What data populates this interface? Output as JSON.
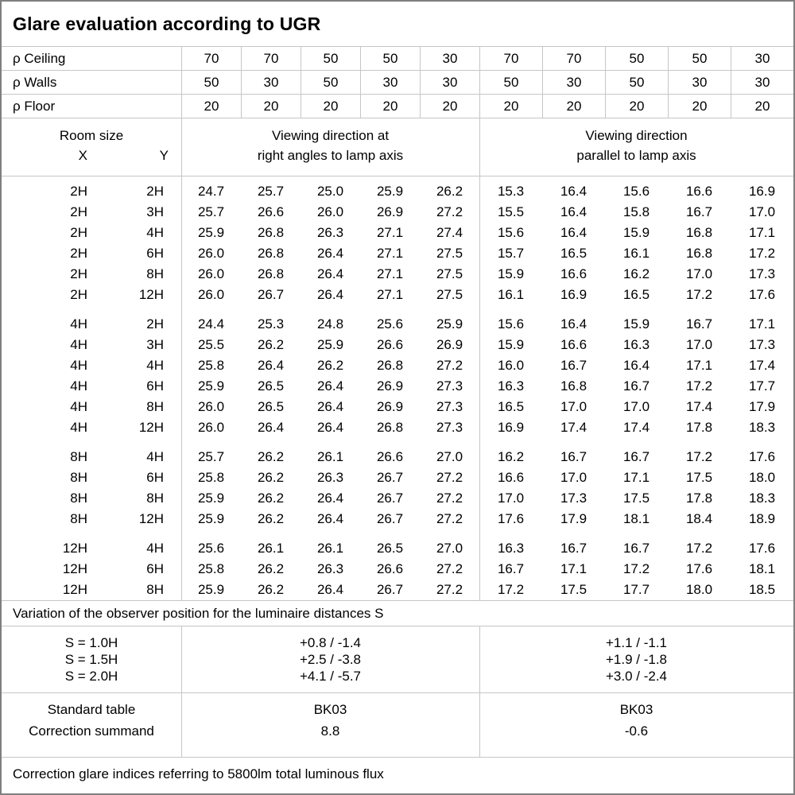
{
  "title": "Glare evaluation according to UGR",
  "reflectance_rows": [
    {
      "label": "ρ Ceiling",
      "values": [
        "70",
        "70",
        "50",
        "50",
        "30",
        "70",
        "70",
        "50",
        "50",
        "30"
      ]
    },
    {
      "label": "ρ Walls",
      "values": [
        "50",
        "30",
        "50",
        "30",
        "30",
        "50",
        "30",
        "50",
        "30",
        "30"
      ]
    },
    {
      "label": "ρ Floor",
      "values": [
        "20",
        "20",
        "20",
        "20",
        "20",
        "20",
        "20",
        "20",
        "20",
        "20"
      ]
    }
  ],
  "room_header": {
    "title": "Room size",
    "x_label": "X",
    "y_label": "Y",
    "left_heading_line1": "Viewing direction at",
    "left_heading_line2": "right angles to lamp axis",
    "right_heading_line1": "Viewing direction",
    "right_heading_line2": "parallel to lamp axis"
  },
  "ugr_blocks": [
    {
      "rows": [
        {
          "x": "2H",
          "y": "2H",
          "right_angles": [
            "24.7",
            "25.7",
            "25.0",
            "25.9",
            "26.2"
          ],
          "parallel": [
            "15.3",
            "16.4",
            "15.6",
            "16.6",
            "16.9"
          ]
        },
        {
          "x": "2H",
          "y": "3H",
          "right_angles": [
            "25.7",
            "26.6",
            "26.0",
            "26.9",
            "27.2"
          ],
          "parallel": [
            "15.5",
            "16.4",
            "15.8",
            "16.7",
            "17.0"
          ]
        },
        {
          "x": "2H",
          "y": "4H",
          "right_angles": [
            "25.9",
            "26.8",
            "26.3",
            "27.1",
            "27.4"
          ],
          "parallel": [
            "15.6",
            "16.4",
            "15.9",
            "16.8",
            "17.1"
          ]
        },
        {
          "x": "2H",
          "y": "6H",
          "right_angles": [
            "26.0",
            "26.8",
            "26.4",
            "27.1",
            "27.5"
          ],
          "parallel": [
            "15.7",
            "16.5",
            "16.1",
            "16.8",
            "17.2"
          ]
        },
        {
          "x": "2H",
          "y": "8H",
          "right_angles": [
            "26.0",
            "26.8",
            "26.4",
            "27.1",
            "27.5"
          ],
          "parallel": [
            "15.9",
            "16.6",
            "16.2",
            "17.0",
            "17.3"
          ]
        },
        {
          "x": "2H",
          "y": "12H",
          "right_angles": [
            "26.0",
            "26.7",
            "26.4",
            "27.1",
            "27.5"
          ],
          "parallel": [
            "16.1",
            "16.9",
            "16.5",
            "17.2",
            "17.6"
          ]
        }
      ]
    },
    {
      "rows": [
        {
          "x": "4H",
          "y": "2H",
          "right_angles": [
            "24.4",
            "25.3",
            "24.8",
            "25.6",
            "25.9"
          ],
          "parallel": [
            "15.6",
            "16.4",
            "15.9",
            "16.7",
            "17.1"
          ]
        },
        {
          "x": "4H",
          "y": "3H",
          "right_angles": [
            "25.5",
            "26.2",
            "25.9",
            "26.6",
            "26.9"
          ],
          "parallel": [
            "15.9",
            "16.6",
            "16.3",
            "17.0",
            "17.3"
          ]
        },
        {
          "x": "4H",
          "y": "4H",
          "right_angles": [
            "25.8",
            "26.4",
            "26.2",
            "26.8",
            "27.2"
          ],
          "parallel": [
            "16.0",
            "16.7",
            "16.4",
            "17.1",
            "17.4"
          ]
        },
        {
          "x": "4H",
          "y": "6H",
          "right_angles": [
            "25.9",
            "26.5",
            "26.4",
            "26.9",
            "27.3"
          ],
          "parallel": [
            "16.3",
            "16.8",
            "16.7",
            "17.2",
            "17.7"
          ]
        },
        {
          "x": "4H",
          "y": "8H",
          "right_angles": [
            "26.0",
            "26.5",
            "26.4",
            "26.9",
            "27.3"
          ],
          "parallel": [
            "16.5",
            "17.0",
            "17.0",
            "17.4",
            "17.9"
          ]
        },
        {
          "x": "4H",
          "y": "12H",
          "right_angles": [
            "26.0",
            "26.4",
            "26.4",
            "26.8",
            "27.3"
          ],
          "parallel": [
            "16.9",
            "17.4",
            "17.4",
            "17.8",
            "18.3"
          ]
        }
      ]
    },
    {
      "rows": [
        {
          "x": "8H",
          "y": "4H",
          "right_angles": [
            "25.7",
            "26.2",
            "26.1",
            "26.6",
            "27.0"
          ],
          "parallel": [
            "16.2",
            "16.7",
            "16.7",
            "17.2",
            "17.6"
          ]
        },
        {
          "x": "8H",
          "y": "6H",
          "right_angles": [
            "25.8",
            "26.2",
            "26.3",
            "26.7",
            "27.2"
          ],
          "parallel": [
            "16.6",
            "17.0",
            "17.1",
            "17.5",
            "18.0"
          ]
        },
        {
          "x": "8H",
          "y": "8H",
          "right_angles": [
            "25.9",
            "26.2",
            "26.4",
            "26.7",
            "27.2"
          ],
          "parallel": [
            "17.0",
            "17.3",
            "17.5",
            "17.8",
            "18.3"
          ]
        },
        {
          "x": "8H",
          "y": "12H",
          "right_angles": [
            "25.9",
            "26.2",
            "26.4",
            "26.7",
            "27.2"
          ],
          "parallel": [
            "17.6",
            "17.9",
            "18.1",
            "18.4",
            "18.9"
          ]
        }
      ]
    },
    {
      "rows": [
        {
          "x": "12H",
          "y": "4H",
          "right_angles": [
            "25.6",
            "26.1",
            "26.1",
            "26.5",
            "27.0"
          ],
          "parallel": [
            "16.3",
            "16.7",
            "16.7",
            "17.2",
            "17.6"
          ]
        },
        {
          "x": "12H",
          "y": "6H",
          "right_angles": [
            "25.8",
            "26.2",
            "26.3",
            "26.6",
            "27.2"
          ],
          "parallel": [
            "16.7",
            "17.1",
            "17.2",
            "17.6",
            "18.1"
          ]
        },
        {
          "x": "12H",
          "y": "8H",
          "right_angles": [
            "25.9",
            "26.2",
            "26.4",
            "26.7",
            "27.2"
          ],
          "parallel": [
            "17.2",
            "17.5",
            "17.7",
            "18.0",
            "18.5"
          ]
        }
      ]
    }
  ],
  "variation": {
    "note": "Variation of the observer position for the luminaire distances S",
    "rows": [
      {
        "label": "S = 1.0H",
        "right_angles": "+0.8 / -1.4",
        "parallel": "+1.1 / -1.1"
      },
      {
        "label": "S = 1.5H",
        "right_angles": "+2.5 / -3.8",
        "parallel": "+1.9 / -1.8"
      },
      {
        "label": "S = 2.0H",
        "right_angles": "+4.1 / -5.7",
        "parallel": "+3.0 / -2.4"
      }
    ]
  },
  "summary": {
    "rows": [
      {
        "label": "Standard table",
        "right_angles": "BK03",
        "parallel": "BK03"
      },
      {
        "label": "Correction summand",
        "right_angles": "8.8",
        "parallel": "-0.6"
      }
    ]
  },
  "footer": "Correction glare indices referring to 5800lm total luminous flux"
}
